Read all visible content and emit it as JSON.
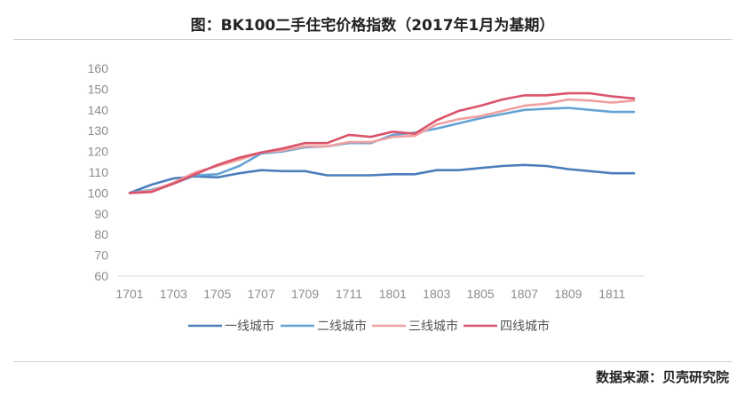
{
  "title": "图：BK100二手住宅价格指数（2017年1月为基期）",
  "source": "数据来源：贝壳研究院",
  "chart_data": {
    "type": "line",
    "title": "图：BK100二手住宅价格指数（2017年1月为基期）",
    "xlabel": "",
    "ylabel": "",
    "ylim": [
      60,
      160
    ],
    "yticks": [
      60,
      70,
      80,
      90,
      100,
      110,
      120,
      130,
      140,
      150,
      160
    ],
    "x": [
      "1701",
      "1702",
      "1703",
      "1704",
      "1705",
      "1706",
      "1707",
      "1708",
      "1709",
      "1710",
      "1711",
      "1712",
      "1801",
      "1802",
      "1803",
      "1804",
      "1805",
      "1806",
      "1807",
      "1808",
      "1809",
      "1810",
      "1811",
      "1812"
    ],
    "xtick_labels": [
      "1701",
      "1703",
      "1705",
      "1707",
      "1709",
      "1711",
      "1801",
      "1803",
      "1805",
      "1807",
      "1809",
      "1811"
    ],
    "grid": false,
    "legend_position": "bottom",
    "series": [
      {
        "name": "一线城市",
        "color": "#4a7ebb",
        "values": [
          100,
          104,
          107,
          108,
          107.5,
          109.5,
          111,
          110.5,
          110.5,
          108.5,
          108.5,
          108.5,
          109,
          109,
          111,
          111,
          112,
          113,
          113.5,
          113,
          111.5,
          110.5,
          109.5,
          109.5
        ]
      },
      {
        "name": "二线城市",
        "color": "#64a3d4",
        "values": [
          100,
          101.5,
          104.5,
          108.5,
          109,
          113,
          119,
          120,
          122,
          122.5,
          124,
          124,
          128,
          129,
          131,
          133.5,
          136,
          138,
          140,
          140.5,
          141,
          140,
          139,
          139
        ]
      },
      {
        "name": "三线城市",
        "color": "#f0a0a0",
        "values": [
          100,
          101,
          105,
          110,
          113,
          116,
          119.5,
          120.5,
          122.5,
          122.5,
          124.5,
          124.5,
          127,
          127.5,
          133,
          135.5,
          137,
          139.5,
          142,
          143,
          145,
          144.5,
          143.5,
          144.5
        ]
      },
      {
        "name": "四线城市",
        "color": "#d9536a",
        "values": [
          100,
          100.5,
          104.5,
          109,
          113.5,
          117,
          119.5,
          121.5,
          124,
          124,
          128,
          127,
          129.5,
          128.5,
          135,
          139.5,
          142,
          145,
          147,
          147,
          148,
          148,
          146.5,
          145.5
        ]
      }
    ]
  }
}
